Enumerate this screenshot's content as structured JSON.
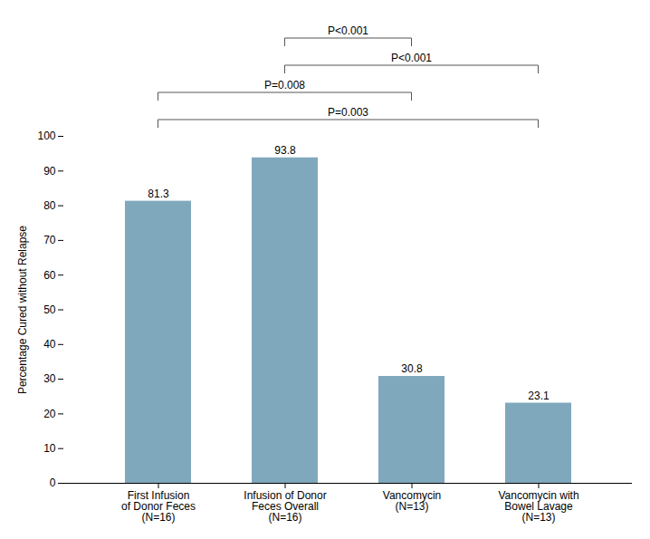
{
  "chart_data": {
    "type": "bar",
    "categories": [
      "First Infusion\nof Donor Feces\n(N=16)",
      "Infusion of Donor\nFeces Overall\n(N=16)",
      "Vancomycin\n(N=13)",
      "Vancomycin with\nBowel Lavage\n(N=13)"
    ],
    "values": [
      81.3,
      93.8,
      30.8,
      23.1
    ],
    "color": "#7FA8BC",
    "ylabel": "Percentage Cured without Relapse",
    "ylim": [
      0,
      100
    ],
    "yticks": [
      0,
      10,
      20,
      30,
      40,
      50,
      60,
      70,
      80,
      90,
      100
    ],
    "grid": false,
    "data_labels": true,
    "annotations": [
      {
        "text": "P=0.003",
        "from": "First Infusion\nof Donor Feces\n(N=16)",
        "to": "Vancomycin with\nBowel Lavage\n(N=13)"
      },
      {
        "text": "P=0.008",
        "from": "First Infusion\nof Donor Feces\n(N=16)",
        "to": "Vancomycin\n(N=13)"
      },
      {
        "text": "P<0.001",
        "from": "Infusion of Donor\nFeces Overall\n(N=16)",
        "to": "Vancomycin with\nBowel Lavage\n(N=13)"
      },
      {
        "text": "P<0.001",
        "from": "Infusion of Donor\nFeces Overall\n(N=16)",
        "to": "Vancomycin\n(N=13)"
      }
    ]
  }
}
